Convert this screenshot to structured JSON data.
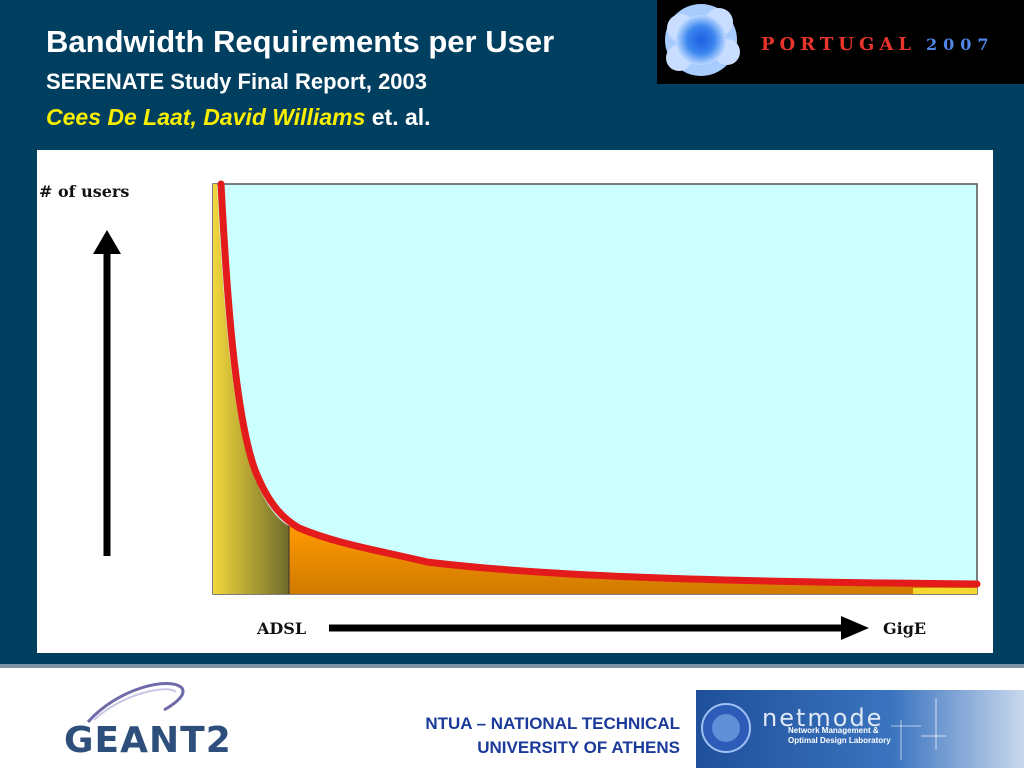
{
  "slide": {
    "title": "Bandwidth Requirements per User",
    "subtitle": "SERENATE Study Final Report, 2003",
    "authors": {
      "author1": "Cees De Laat",
      "separator": ",",
      "author2": "David Williams",
      "suffix": "et. al."
    }
  },
  "banner": {
    "country": "PORTUGAL",
    "year": "2007"
  },
  "diagram": {
    "y_axis_label": "# of users",
    "x_start_label": "ADSL",
    "x_end_label": "GigE"
  },
  "footer": {
    "geant_logo_text": "GEANT2",
    "university_line1": "NTUA – NATIONAL TECHNICAL",
    "university_line2": "UNIVERSITY OF ATHENS",
    "netmode_title": "netmode",
    "netmode_sub1": "Network Management &",
    "netmode_sub2": "Optimal Design Laboratory"
  },
  "colors": {
    "background": "#003f60",
    "title_text": "#ffffff",
    "author_highlight": "#f7ee00",
    "plot_background": "#ccffff",
    "curve": "#e41b1b",
    "area_left": "#e8c830",
    "area_right": "#f59a00",
    "university_text": "#1b3a9a"
  }
}
